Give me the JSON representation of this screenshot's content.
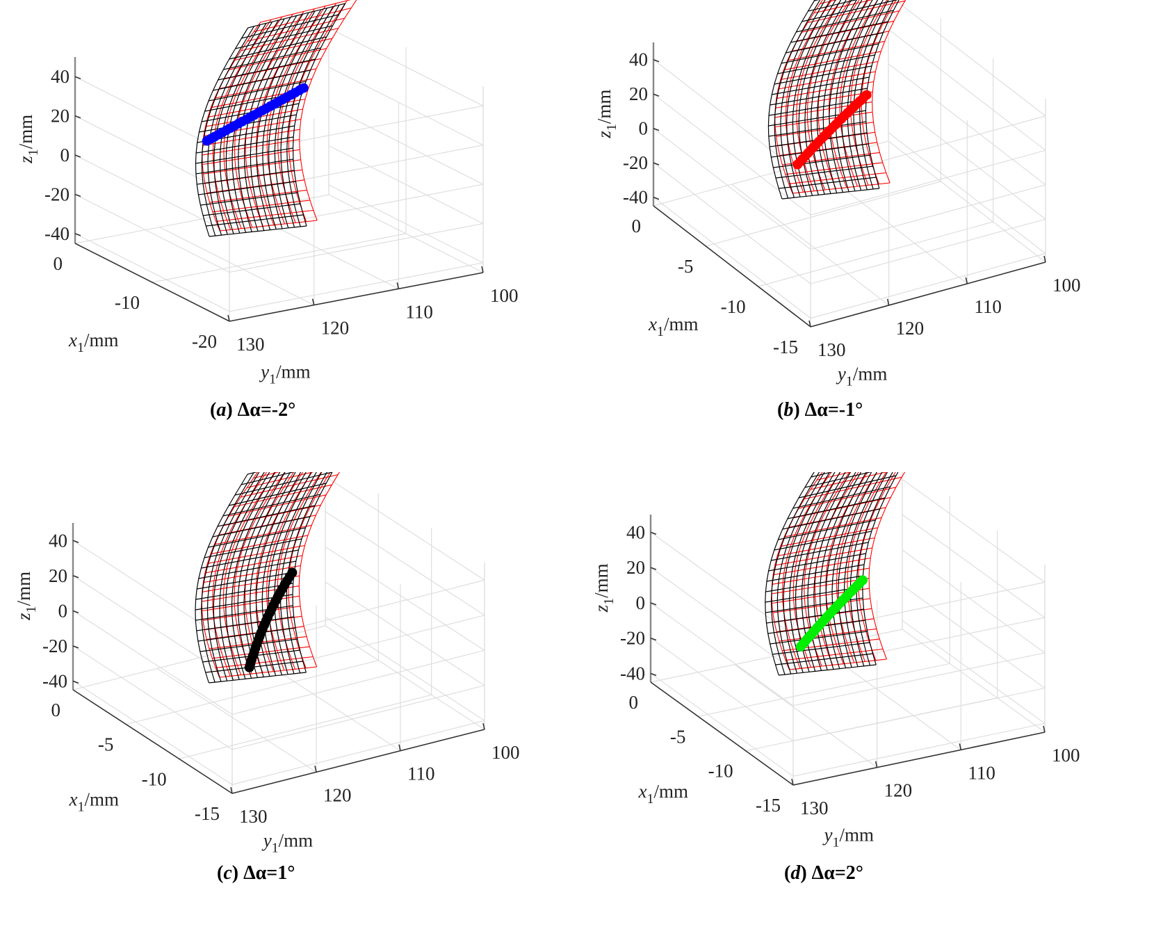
{
  "figure": {
    "panels": [
      {
        "letter": "a",
        "caption_prefix": "(",
        "caption_suffix": ") ",
        "caption_param": "Δα",
        "caption_value": "=-2°"
      },
      {
        "letter": "b",
        "caption_prefix": "(",
        "caption_suffix": ") ",
        "caption_param": "Δα",
        "caption_value": "=-1°"
      },
      {
        "letter": "c",
        "caption_prefix": "(",
        "caption_suffix": ") ",
        "caption_param": "Δα",
        "caption_value": "=1°"
      },
      {
        "letter": "d",
        "caption_prefix": "(",
        "caption_suffix": ") ",
        "caption_param": "Δα",
        "caption_value": "=2°"
      }
    ]
  },
  "chart_data": [
    {
      "type": "surface3d",
      "title": "(a) Δα=-2°",
      "delta_alpha_deg": -2,
      "xlabel": {
        "var": "x",
        "sub": "1",
        "unit": "/mm"
      },
      "ylabel": {
        "var": "y",
        "sub": "1",
        "unit": "/mm"
      },
      "zlabel": {
        "var": "z",
        "sub": "1",
        "unit": "/mm"
      },
      "xlim": [
        -20,
        0
      ],
      "ylim": [
        100,
        130
      ],
      "zlim": [
        -45,
        50
      ],
      "x_ticks": [
        "0",
        "-10",
        "-20"
      ],
      "y_ticks": [
        "130",
        "120",
        "110",
        "100"
      ],
      "z_ticks": [
        "40",
        "20",
        "0",
        "-20",
        "-40"
      ],
      "grid": true,
      "series": [
        {
          "name": "tooth surface 1",
          "kind": "mesh",
          "color": "#000000"
        },
        {
          "name": "tooth surface 2",
          "kind": "mesh",
          "color": "#ff0000"
        },
        {
          "name": "contact path",
          "kind": "markers",
          "color": "#0000ff"
        }
      ]
    },
    {
      "type": "surface3d",
      "title": "(b) Δα=-1°",
      "delta_alpha_deg": -1,
      "xlabel": {
        "var": "x",
        "sub": "1",
        "unit": "/mm"
      },
      "ylabel": {
        "var": "y",
        "sub": "1",
        "unit": "/mm"
      },
      "zlabel": {
        "var": "z",
        "sub": "1",
        "unit": "/mm"
      },
      "xlim": [
        -15,
        0
      ],
      "ylim": [
        100,
        130
      ],
      "zlim": [
        -45,
        50
      ],
      "x_ticks": [
        "0",
        "-5",
        "-10",
        "-15"
      ],
      "y_ticks": [
        "130",
        "120",
        "110",
        "100"
      ],
      "z_ticks": [
        "40",
        "20",
        "0",
        "-20",
        "-40"
      ],
      "grid": true,
      "series": [
        {
          "name": "tooth surface 1",
          "kind": "mesh",
          "color": "#000000"
        },
        {
          "name": "tooth surface 2",
          "kind": "mesh",
          "color": "#ff0000"
        },
        {
          "name": "contact path",
          "kind": "markers",
          "color": "#ff0000"
        }
      ]
    },
    {
      "type": "surface3d",
      "title": "(c) Δα=1°",
      "delta_alpha_deg": 1,
      "xlabel": {
        "var": "x",
        "sub": "1",
        "unit": "/mm"
      },
      "ylabel": {
        "var": "y",
        "sub": "1",
        "unit": "/mm"
      },
      "zlabel": {
        "var": "z",
        "sub": "1",
        "unit": "/mm"
      },
      "xlim": [
        -15,
        0
      ],
      "ylim": [
        100,
        130
      ],
      "zlim": [
        -45,
        50
      ],
      "x_ticks": [
        "0",
        "-5",
        "-10",
        "-15"
      ],
      "y_ticks": [
        "130",
        "120",
        "110",
        "100"
      ],
      "z_ticks": [
        "40",
        "20",
        "0",
        "-20",
        "-40"
      ],
      "grid": true,
      "series": [
        {
          "name": "tooth surface 1",
          "kind": "mesh",
          "color": "#000000"
        },
        {
          "name": "tooth surface 2",
          "kind": "mesh",
          "color": "#ff0000"
        },
        {
          "name": "contact path",
          "kind": "markers",
          "color": "#000000"
        }
      ]
    },
    {
      "type": "surface3d",
      "title": "(d) Δα=2°",
      "delta_alpha_deg": 2,
      "xlabel": {
        "var": "x",
        "sub": "1",
        "unit": "/mm"
      },
      "ylabel": {
        "var": "y",
        "sub": "1",
        "unit": "/mm"
      },
      "zlabel": {
        "var": "z",
        "sub": "1",
        "unit": "/mm"
      },
      "xlim": [
        -15,
        0
      ],
      "ylim": [
        100,
        130
      ],
      "zlim": [
        -45,
        50
      ],
      "x_ticks": [
        "0",
        "-5",
        "-10",
        "-15"
      ],
      "y_ticks": [
        "130",
        "120",
        "110",
        "100"
      ],
      "z_ticks": [
        "40",
        "20",
        "0",
        "-20",
        "-40"
      ],
      "grid": true,
      "series": [
        {
          "name": "tooth surface 1",
          "kind": "mesh",
          "color": "#000000"
        },
        {
          "name": "tooth surface 2",
          "kind": "mesh",
          "color": "#ff0000"
        },
        {
          "name": "contact path",
          "kind": "markers",
          "color": "#00ee00"
        }
      ]
    }
  ]
}
